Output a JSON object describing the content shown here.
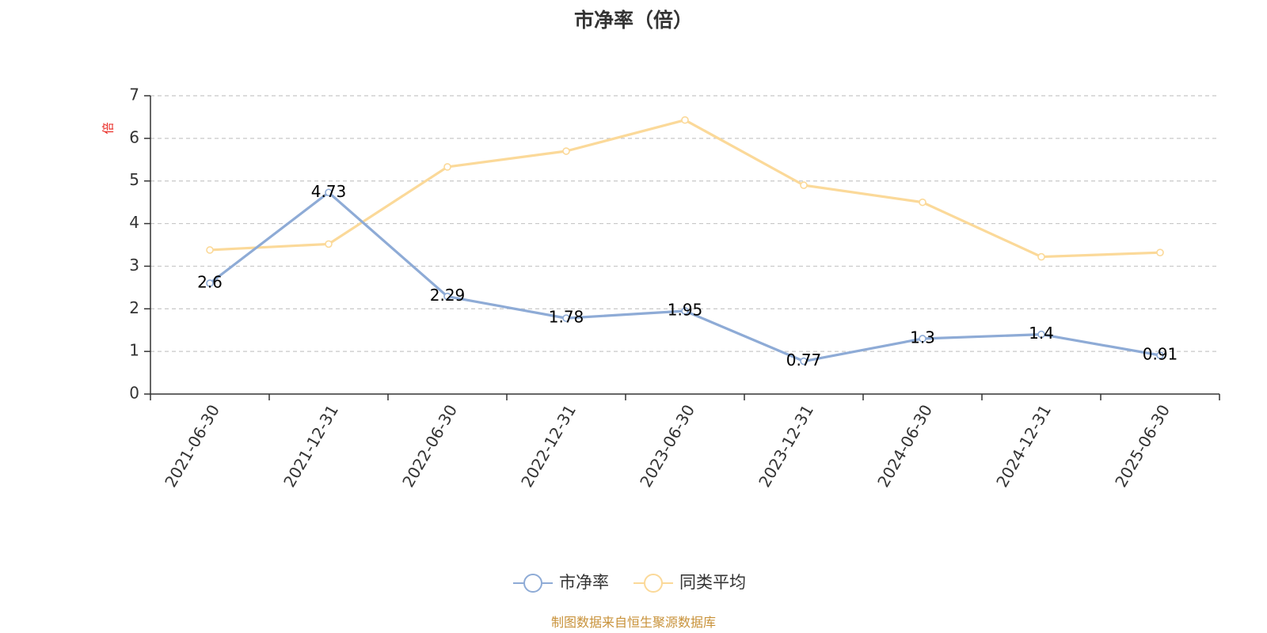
{
  "chart_data": {
    "type": "line",
    "title": "市净率（倍）",
    "ylabel": "倍",
    "ylim": [
      0,
      7
    ],
    "yticks": [
      0,
      1,
      2,
      3,
      4,
      5,
      6,
      7
    ],
    "grid": true,
    "legend_position": "bottom-center",
    "categories": [
      "2021-06-30",
      "2021-12-31",
      "2022-06-30",
      "2022-12-31",
      "2023-06-30",
      "2023-12-31",
      "2024-06-30",
      "2024-12-31",
      "2025-06-30"
    ],
    "series": [
      {
        "name": "市净率",
        "color": "#8eabd6",
        "values": [
          2.6,
          4.73,
          2.29,
          1.78,
          1.95,
          0.77,
          1.3,
          1.4,
          0.91
        ],
        "labels": [
          "2.6",
          "4.73",
          "2.29",
          "1.78",
          "1.95",
          "0.77",
          "1.3",
          "1.4",
          "0.91"
        ]
      },
      {
        "name": "同类平均",
        "color": "#fbd999",
        "values": [
          3.38,
          3.52,
          5.33,
          5.7,
          6.43,
          4.9,
          4.5,
          3.22,
          3.32
        ]
      }
    ]
  },
  "source": "制图数据来自恒生聚源数据库"
}
